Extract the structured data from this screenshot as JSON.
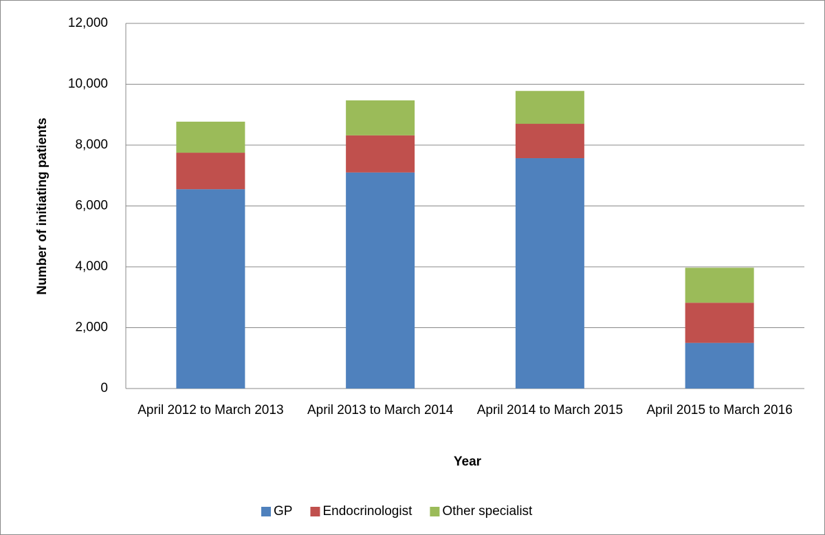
{
  "chart_data": {
    "type": "bar",
    "stacked": true,
    "x_label": "Year",
    "y_label": "Number of initiating patients",
    "categories": [
      "April 2012 to March 2013",
      "April 2013 to March 2014",
      "April 2014 to March 2015",
      "April 2015 to March 2016"
    ],
    "series": [
      {
        "name": "GP",
        "color": "#4f81bd",
        "values": [
          6550,
          7100,
          7570,
          1500
        ]
      },
      {
        "name": "Endocrinologist",
        "color": "#c0504d",
        "values": [
          1200,
          1220,
          1130,
          1320
        ]
      },
      {
        "name": "Other specialist",
        "color": "#9bbb59",
        "values": [
          1020,
          1150,
          1080,
          1150
        ]
      }
    ],
    "ylim": [
      0,
      12000
    ],
    "yticks": [
      0,
      {
        "value": 2000,
        "label": "2,000"
      },
      {
        "value": 4000,
        "label": "4,000"
      },
      {
        "value": 6000,
        "label": "6,000"
      },
      {
        "value": 8000,
        "label": "8,000"
      },
      {
        "value": 10000,
        "label": "10,000"
      },
      {
        "value": 12000,
        "label": "12,000"
      }
    ],
    "grid": true,
    "legend": "bottom"
  }
}
